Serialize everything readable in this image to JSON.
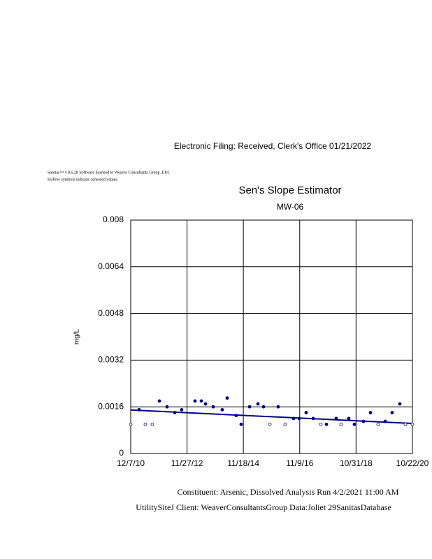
{
  "header": {
    "filing": "Electronic Filing: Received, Clerk's Office 01/21/2022"
  },
  "notes": [
    "Sanitas™ v.9.6.28 Software licensed to Weaver Consultants Group. EPA",
    "Hollow symbols indicate censored values."
  ],
  "footer": [
    "Constituent: Arsenic, Dissolved Analysis Run 4/2/2021 11:00 AM",
    "UtilitySiteJ Client: WeaverConsultantsGroup Data:Joliet 29SanitasDatabase"
  ],
  "chart_data": {
    "type": "scatter",
    "title": "Sen's Slope Estimator",
    "subtitle": "MW-06",
    "y_label": "mg/L",
    "x": [
      "2010-12-07",
      "2011-03-24",
      "2011-06-13",
      "2011-09-10",
      "2011-12-09",
      "2012-03-16",
      "2012-06-23",
      "2012-09-20",
      "2013-03-09",
      "2013-05-29",
      "2013-07-22",
      "2013-10-28",
      "2014-02-21",
      "2014-04-25",
      "2014-08-19",
      "2014-10-21",
      "2015-02-06",
      "2015-05-24",
      "2015-08-04",
      "2015-10-23",
      "2016-02-07",
      "2016-05-07",
      "2016-08-22",
      "2016-11-02",
      "2017-01-30",
      "2017-04-30",
      "2017-08-06",
      "2017-10-17",
      "2018-02-19",
      "2018-04-23",
      "2018-07-30",
      "2018-10-10",
      "2019-02-03",
      "2019-05-04",
      "2019-08-10",
      "2019-11-08",
      "2020-02-05",
      "2020-05-14",
      "2020-07-24",
      "2020-10-22"
    ],
    "values": [
      0.001,
      0.0015,
      0.001,
      0.001,
      0.0018,
      0.0016,
      0.0014,
      0.0015,
      0.0018,
      0.0018,
      0.0017,
      0.0016,
      0.0015,
      0.0019,
      0.0013,
      0.001,
      0.0016,
      0.0017,
      0.0016,
      0.001,
      0.0016,
      0.001,
      0.0012,
      0.0012,
      0.0014,
      0.0012,
      0.001,
      0.001,
      0.0012,
      0.001,
      0.0012,
      0.001,
      0.0011,
      0.0014,
      0.001,
      0.0011,
      0.0014,
      0.0017,
      0.001,
      0.001
    ],
    "censored": [
      true,
      false,
      true,
      true,
      false,
      false,
      false,
      false,
      false,
      false,
      false,
      false,
      false,
      false,
      false,
      false,
      false,
      false,
      false,
      true,
      false,
      true,
      false,
      false,
      false,
      false,
      true,
      false,
      false,
      true,
      false,
      false,
      false,
      false,
      true,
      false,
      false,
      false,
      true,
      true
    ],
    "color": "#000080",
    "trend": {
      "x": [
        "2010-12-07",
        "2020-10-22"
      ],
      "values": [
        0.00149,
        0.00103
      ],
      "color": "#00008b"
    },
    "xlim": [
      "2010-12-07",
      "2020-10-22"
    ],
    "xticks": [
      {
        "value": "2010-12-07",
        "label": "12/7/10"
      },
      {
        "value": "2012-11-27",
        "label": "11/27/12"
      },
      {
        "value": "2014-11-18",
        "label": "11/18/14"
      },
      {
        "value": "2016-11-09",
        "label": "11/9/16"
      },
      {
        "value": "2018-10-31",
        "label": "10/31/18"
      },
      {
        "value": "2020-10-22",
        "label": "10/22/20"
      }
    ],
    "ylim": [
      0,
      0.008
    ],
    "yticks": [
      0,
      0.0016,
      0.0032,
      0.0048,
      0.0064,
      0.008
    ],
    "grid": true
  }
}
